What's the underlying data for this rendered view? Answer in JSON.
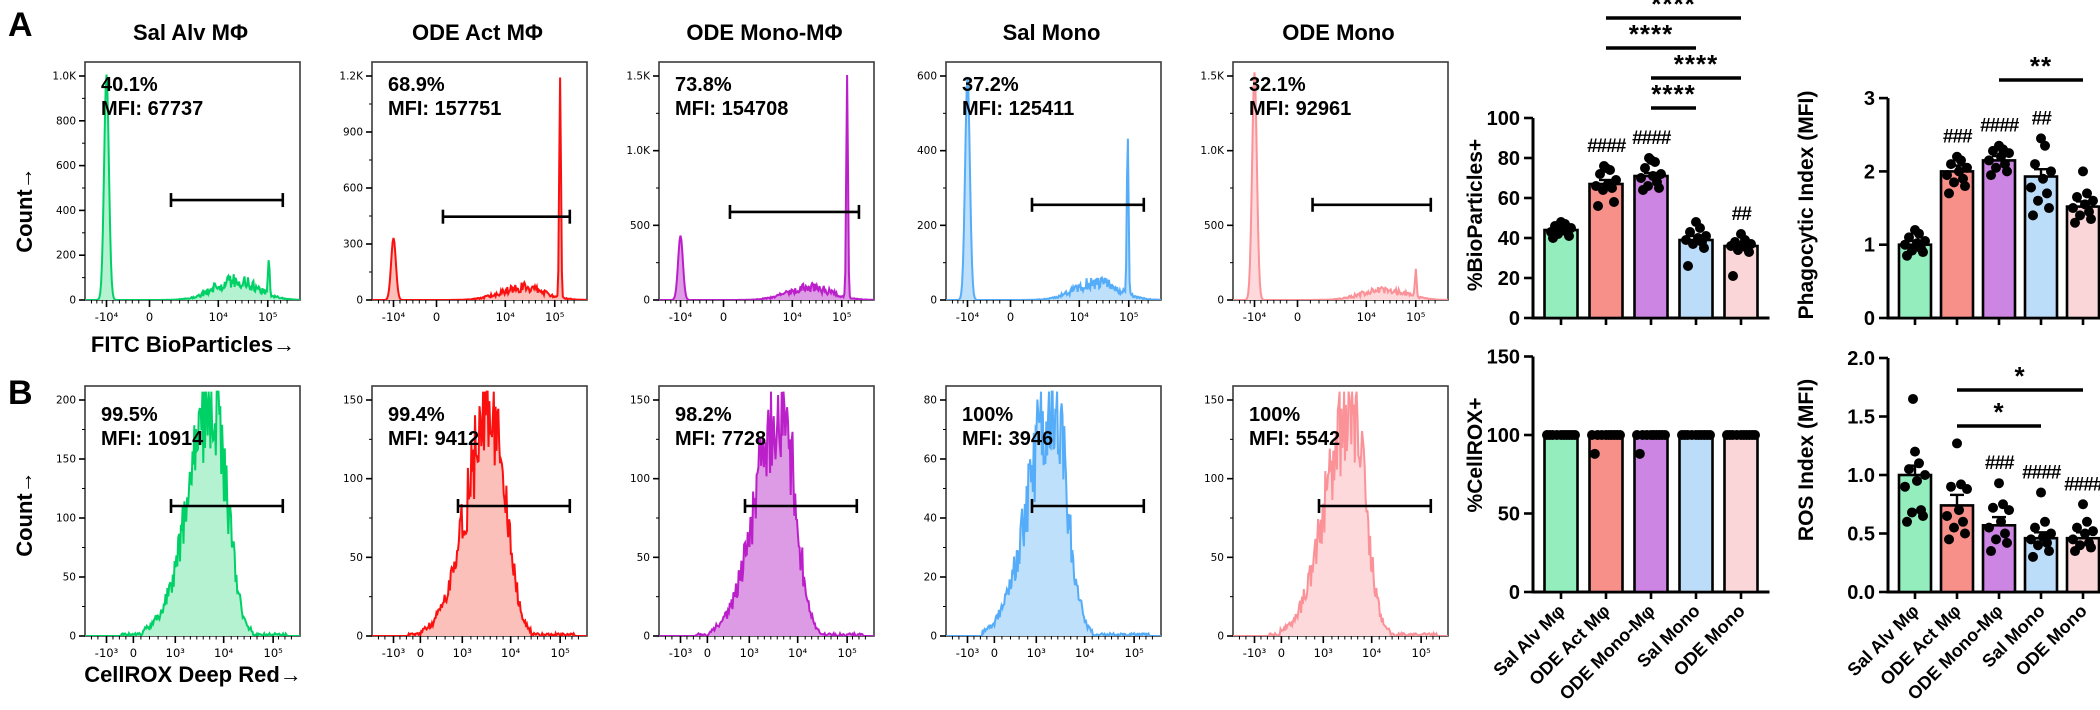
{
  "figure": {
    "panel_a_label": "A",
    "panel_b_label": "B"
  },
  "colors": {
    "green_stroke": "#00d166",
    "green_fill": "#b5f2d1",
    "green_bar": "#93edbd",
    "red_stroke": "#fb1010",
    "red_fill": "#fcc0ba",
    "red_bar": "#f79089",
    "purple_stroke": "#bb1fc9",
    "purple_fill": "#dc9be4",
    "purple_bar": "#cc85e3",
    "blue_stroke": "#55acf8",
    "blue_fill": "#bfe0fb",
    "blue_bar": "#bbddf9",
    "pink_stroke": "#fa9298",
    "pink_fill": "#fdd9dc",
    "pink_bar": "#fad6d8",
    "axis": "#000000",
    "box": "#3c3c3c"
  },
  "chart_data": {
    "type": "histogram+bar",
    "categories": [
      "Sal Alv Mφ",
      "ODE Act Mφ",
      "ODE Mono-Mφ",
      "Sal Mono",
      "ODE Mono"
    ],
    "row_a": {
      "xlabel": "FITC BioParticles→",
      "ylabel": "Count→",
      "xticks": [
        {
          "label": "-10⁴",
          "pos": 0.1
        },
        {
          "label": "0",
          "pos": 0.3
        },
        {
          "label": "10⁴",
          "pos": 0.62
        },
        {
          "label": "10⁵",
          "pos": 0.85
        }
      ],
      "panels": [
        {
          "title": "Sal Alv MΦ",
          "pct": "40.1%",
          "mfi": "MFI: 67737",
          "color": "green",
          "yticks": [
            "0",
            "200",
            "400",
            "600",
            "800",
            "1.0K"
          ],
          "neg_peak": 0.98,
          "hump": 0.085,
          "spike": 0.15,
          "spike_x": 0.855,
          "gate": {
            "x1": 0.4,
            "x2": 0.92,
            "y": 0.42
          }
        },
        {
          "title": "ODE Act MΦ",
          "pct": "68.9%",
          "mfi": "MFI: 157751",
          "color": "red",
          "yticks": [
            "0",
            "300",
            "600",
            "900",
            "1.2K"
          ],
          "neg_peak": 0.27,
          "hump": 0.055,
          "spike": 0.96,
          "spike_x": 0.875,
          "gate": {
            "x1": 0.33,
            "x2": 0.92,
            "y": 0.35
          }
        },
        {
          "title": "ODE Mono-MΦ",
          "pct": "73.8%",
          "mfi": "MFI: 154708",
          "color": "purple",
          "yticks": [
            "0",
            "500",
            "1.0K",
            "1.5K"
          ],
          "neg_peak": 0.28,
          "hump": 0.055,
          "spike": 0.97,
          "spike_x": 0.875,
          "gate": {
            "x1": 0.33,
            "x2": 0.93,
            "y": 0.37
          }
        },
        {
          "title": "Sal Mono",
          "pct": "37.2%",
          "mfi": "MFI: 125411",
          "color": "blue",
          "yticks": [
            "0",
            "200",
            "400",
            "600"
          ],
          "neg_peak": 0.97,
          "hump": 0.075,
          "spike": 0.7,
          "spike_x": 0.845,
          "gate": {
            "x1": 0.4,
            "x2": 0.92,
            "y": 0.4
          }
        },
        {
          "title": "ODE Mono",
          "pct": "32.1%",
          "mfi": "MFI: 92961",
          "color": "pink",
          "yticks": [
            "0",
            "500",
            "1.0K",
            "1.5K"
          ],
          "neg_peak": 0.99,
          "hump": 0.045,
          "spike": 0.12,
          "spike_x": 0.85,
          "gate": {
            "x1": 0.37,
            "x2": 0.92,
            "y": 0.4
          }
        }
      ]
    },
    "row_b": {
      "xlabel": "CellROX Deep Red→",
      "ylabel": "Count→",
      "xticks": [
        {
          "label": "-10³",
          "pos": 0.1
        },
        {
          "label": "0",
          "pos": 0.225
        },
        {
          "label": "10³",
          "pos": 0.42
        },
        {
          "label": "10⁴",
          "pos": 0.645
        },
        {
          "label": "10⁵",
          "pos": 0.875
        }
      ],
      "gate": {
        "x1": 0.4,
        "x2": 0.92,
        "y": 0.52
      },
      "panels": [
        {
          "pct": "99.5%",
          "mfi": "MFI: 10914",
          "color": "green",
          "yticks": [
            "0",
            "50",
            "100",
            "150",
            "200"
          ],
          "peak": 0.97,
          "center": 0.6
        },
        {
          "pct": "99.4%",
          "mfi": "MFI: 9412",
          "color": "red",
          "yticks": [
            "0",
            "50",
            "100",
            "150"
          ],
          "peak": 0.95,
          "center": 0.56
        },
        {
          "pct": "98.2%",
          "mfi": "MFI: 7728",
          "color": "purple",
          "yticks": [
            "0",
            "50",
            "100",
            "150"
          ],
          "peak": 0.97,
          "center": 0.57
        },
        {
          "pct": "100%",
          "mfi": "MFI: 3946",
          "color": "blue",
          "yticks": [
            "0",
            "20",
            "40",
            "60",
            "80"
          ],
          "peak": 0.96,
          "center": 0.5
        },
        {
          "pct": "100%",
          "mfi": "MFI: 5542",
          "color": "pink",
          "yticks": [
            "0",
            "50",
            "100",
            "150"
          ],
          "peak": 0.95,
          "center": 0.55
        }
      ]
    },
    "bar_charts": [
      {
        "id": "bioparticles",
        "ylabel": "%BioParticles+",
        "ymax": 100,
        "yticks": [
          "0",
          "20",
          "40",
          "60",
          "80",
          "100"
        ],
        "values": [
          44,
          67,
          71,
          39,
          36
        ],
        "errors": [
          1.5,
          2,
          1.5,
          2,
          2
        ],
        "points": [
          [
            40,
            41,
            42,
            43,
            43,
            44,
            45,
            46,
            47,
            48
          ],
          [
            56,
            58,
            64,
            65,
            66,
            67,
            69,
            72,
            74,
            75,
            76
          ],
          [
            64,
            65,
            66,
            68,
            70,
            71,
            72,
            75,
            78,
            79,
            80
          ],
          [
            26,
            35,
            37,
            38,
            39,
            40,
            41,
            43,
            45,
            48
          ],
          [
            21,
            33,
            34,
            35,
            36,
            36,
            37,
            38,
            39,
            42
          ]
        ],
        "hashes": [
          "",
          "####",
          "####",
          "",
          "##"
        ],
        "brackets": [
          {
            "from": 1,
            "to": 4,
            "label": "****"
          },
          {
            "from": 1,
            "to": 3,
            "label": "****"
          },
          {
            "from": 2,
            "to": 4,
            "label": "****"
          },
          {
            "from": 2,
            "to": 3,
            "label": "****"
          }
        ],
        "show_categories": false
      },
      {
        "id": "phagocytic",
        "ylabel": "Phagocytic Index (MFI)",
        "ymax": 3,
        "yticks": [
          "0",
          "1",
          "2",
          "3"
        ],
        "values": [
          1.0,
          2.0,
          2.15,
          1.93,
          1.52
        ],
        "errors": [
          0.05,
          0.08,
          0.06,
          0.1,
          0.07
        ],
        "points": [
          [
            0.85,
            0.9,
            0.92,
            0.95,
            1.0,
            1.02,
            1.05,
            1.1,
            1.15,
            1.2
          ],
          [
            1.7,
            1.8,
            1.85,
            1.9,
            1.95,
            2.0,
            2.05,
            2.1,
            2.15,
            2.2
          ],
          [
            1.95,
            2.0,
            2.05,
            2.1,
            2.15,
            2.2,
            2.25,
            2.28,
            2.3,
            2.35
          ],
          [
            1.4,
            1.5,
            1.6,
            1.7,
            1.78,
            1.9,
            2.0,
            2.1,
            2.35,
            2.45
          ],
          [
            1.3,
            1.35,
            1.4,
            1.45,
            1.5,
            1.55,
            1.6,
            1.65,
            1.7,
            2.0
          ]
        ],
        "hashes": [
          "",
          "###",
          "####",
          "##",
          ""
        ],
        "brackets": [
          {
            "from": 2,
            "to": 4,
            "label": "**"
          }
        ],
        "show_categories": false
      },
      {
        "id": "cellrox",
        "ylabel": "%CellROX+",
        "ymax": 150,
        "yticks": [
          "0",
          "50",
          "100",
          "150"
        ],
        "values": [
          100,
          100,
          100,
          100,
          100
        ],
        "errors": [
          0,
          0,
          0,
          0,
          0
        ],
        "points": [
          [
            100,
            100,
            100,
            100,
            100,
            100,
            100,
            100,
            100,
            100
          ],
          [
            88,
            100,
            100,
            100,
            100,
            100,
            100,
            100,
            100,
            100
          ],
          [
            88,
            100,
            100,
            100,
            100,
            100,
            100,
            100,
            100,
            100
          ],
          [
            100,
            100,
            100,
            100,
            100,
            100,
            100,
            100,
            100,
            100
          ],
          [
            100,
            100,
            100,
            100,
            100,
            100,
            100,
            100,
            100,
            100
          ]
        ],
        "hashes": [
          "",
          "",
          "",
          "",
          ""
        ],
        "brackets": [],
        "show_categories": true
      },
      {
        "id": "ros",
        "ylabel": "ROS Index (MFI)",
        "ymax": 2,
        "yticks": [
          "0.0",
          "0.5",
          "1.0",
          "1.5",
          "2.0"
        ],
        "values": [
          1.0,
          0.74,
          0.57,
          0.46,
          0.46
        ],
        "errors": [
          0.08,
          0.09,
          0.07,
          0.05,
          0.05
        ],
        "points": [
          [
            0.6,
            0.65,
            0.68,
            0.7,
            0.9,
            0.95,
            1.0,
            1.05,
            1.1,
            1.2,
            1.65
          ],
          [
            0.45,
            0.5,
            0.55,
            0.6,
            0.65,
            0.7,
            0.88,
            0.9,
            0.92,
            1.27
          ],
          [
            0.35,
            0.42,
            0.45,
            0.5,
            0.55,
            0.6,
            0.7,
            0.72,
            0.75,
            0.93
          ],
          [
            0.3,
            0.35,
            0.4,
            0.42,
            0.45,
            0.47,
            0.5,
            0.55,
            0.6,
            0.85
          ],
          [
            0.35,
            0.38,
            0.4,
            0.42,
            0.45,
            0.5,
            0.52,
            0.55,
            0.6,
            0.75
          ]
        ],
        "hashes": [
          "",
          "",
          "###",
          "####",
          "####"
        ],
        "brackets": [
          {
            "from": 1,
            "to": 4,
            "label": "*"
          },
          {
            "from": 1,
            "to": 3,
            "label": "*"
          }
        ],
        "show_categories": true
      }
    ]
  }
}
